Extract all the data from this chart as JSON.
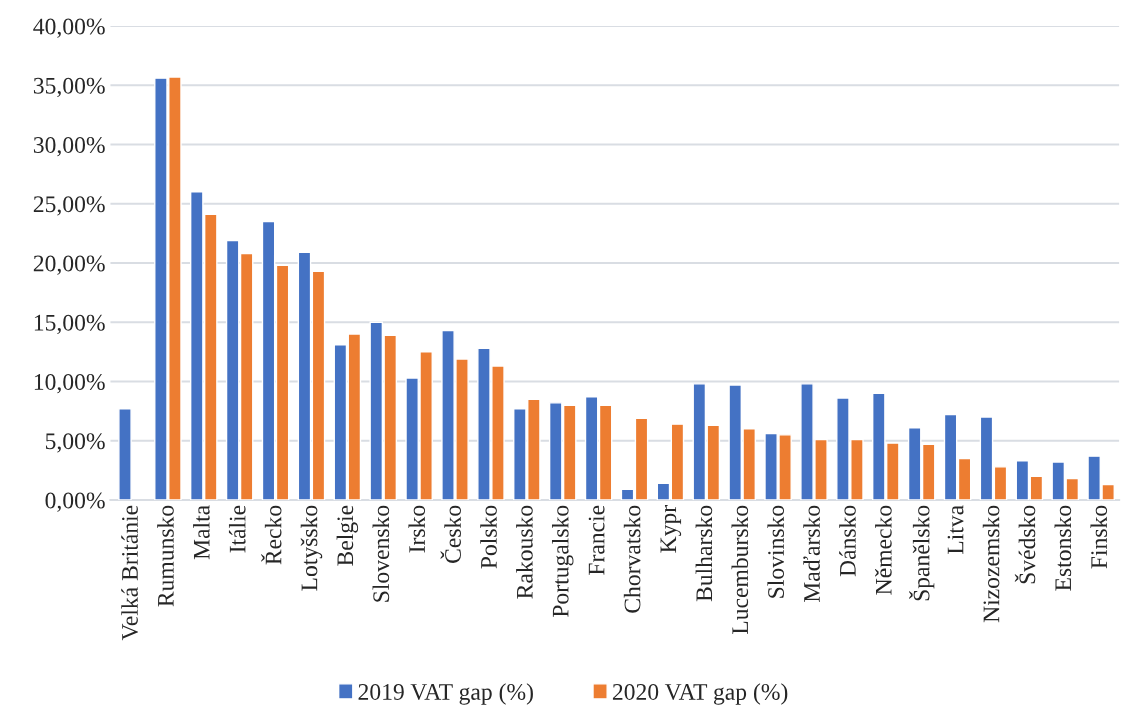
{
  "chart_data": {
    "type": "bar",
    "categories": [
      "Velká Británie",
      "Rumunsko",
      "Malta",
      "Itálie",
      "Řecko",
      "Lotyšsko",
      "Belgie",
      "Slovensko",
      "Irsko",
      "Česko",
      "Polsko",
      "Rakousko",
      "Portugalsko",
      "Francie",
      "Chorvatsko",
      "Kypr",
      "Bulharsko",
      "Lucembursko",
      "Slovinsko",
      "Maďarsko",
      "Dánsko",
      "Německo",
      "Španělsko",
      "Litva",
      "Nizozemsko",
      "Švédsko",
      "Estonsko",
      "Finsko"
    ],
    "series": [
      {
        "name": "2019 VAT gap (%)",
        "color": "#4472c4",
        "values": [
          7.7,
          35.6,
          26.0,
          21.9,
          23.5,
          20.9,
          13.1,
          15.0,
          10.3,
          14.3,
          12.8,
          7.7,
          8.2,
          8.7,
          0.9,
          1.4,
          9.8,
          9.7,
          5.6,
          9.8,
          8.6,
          9.0,
          6.1,
          7.2,
          7.0,
          3.3,
          3.2,
          3.7
        ]
      },
      {
        "name": "2020 VAT gap (%)",
        "color": "#ed7d31",
        "values": [
          null,
          35.7,
          24.1,
          20.8,
          19.8,
          19.3,
          14.0,
          13.9,
          12.5,
          11.9,
          11.3,
          8.5,
          8.0,
          8.0,
          6.9,
          6.4,
          6.3,
          6.0,
          5.5,
          5.1,
          5.1,
          4.8,
          4.7,
          3.5,
          2.8,
          2.0,
          1.8,
          1.3
        ]
      }
    ],
    "ylim": [
      0,
      40
    ],
    "yticks": [
      {
        "value": 0,
        "label": "0,00%"
      },
      {
        "value": 5,
        "label": "5,00%"
      },
      {
        "value": 10,
        "label": "10,00%"
      },
      {
        "value": 15,
        "label": "15,00%"
      },
      {
        "value": 20,
        "label": "20,00%"
      },
      {
        "value": 25,
        "label": "25,00%"
      },
      {
        "value": 30,
        "label": "30,00%"
      },
      {
        "value": 35,
        "label": "35,00%"
      },
      {
        "value": 40,
        "label": "40,00%"
      }
    ],
    "grid": "y",
    "legend": "bottom"
  }
}
